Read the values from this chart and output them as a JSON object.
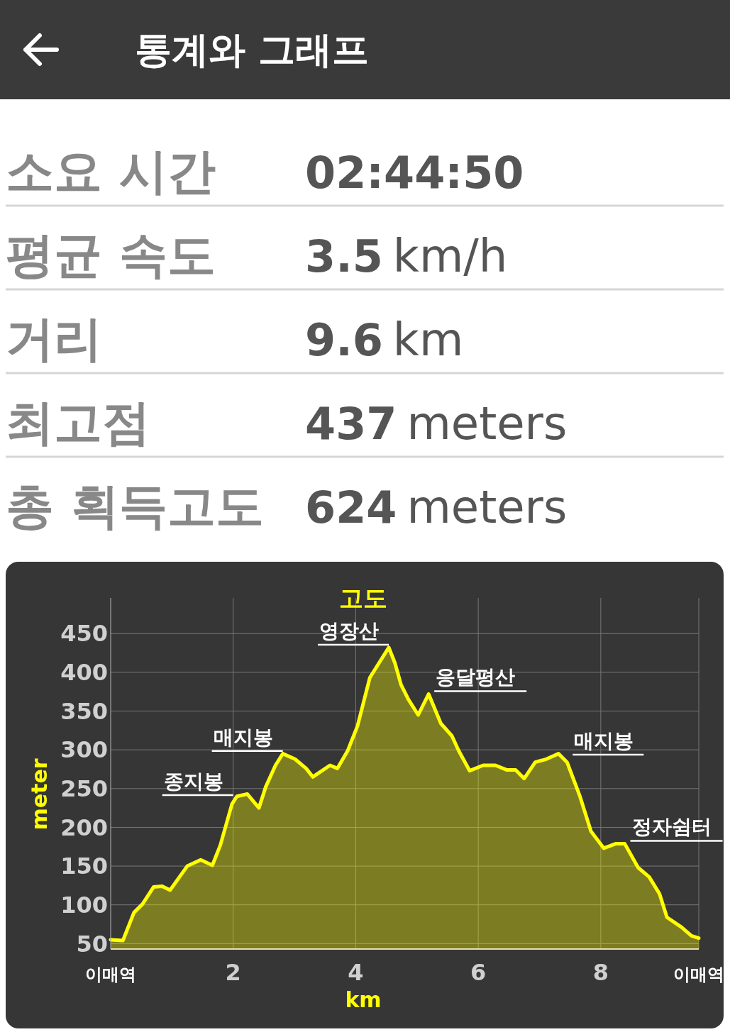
{
  "chart_data": [
    {
      "type": "other",
      "title": "통계와 그래프",
      "categories": [
        "소요 시간",
        "평균 속도",
        "거리",
        "최고점",
        "총 획득고도"
      ],
      "value_labels": [
        "02:44:50",
        "3.5 km/h",
        "9.6 km",
        "437 meters",
        "624 meters"
      ]
    },
    {
      "type": "area",
      "title": "고도",
      "xlabel": "km",
      "ylabel": "meter",
      "x": [
        0,
        0.2,
        0.38,
        0.52,
        0.7,
        0.84,
        0.97,
        1.25,
        1.47,
        1.66,
        1.79,
        1.98,
        2.06,
        2.23,
        2.42,
        2.53,
        2.69,
        2.81,
        3.01,
        3.19,
        3.3,
        3.58,
        3.7,
        3.87,
        4.03,
        4.23,
        4.38,
        4.54,
        4.64,
        4.74,
        4.86,
        5.02,
        5.19,
        5.39,
        5.57,
        5.68,
        5.86,
        6.08,
        6.28,
        6.47,
        6.61,
        6.75,
        6.93,
        7.11,
        7.31,
        7.45,
        7.66,
        7.84,
        8.05,
        8.25,
        8.39,
        8.61,
        8.79,
        8.96,
        9.08,
        9.32,
        9.48,
        9.6
      ],
      "series": [
        {
          "color": "#ffff00",
          "values": [
            55,
            54,
            90,
            101,
            123,
            124,
            119,
            150,
            158,
            151,
            177,
            230,
            240,
            243,
            225,
            252,
            280,
            295,
            288,
            276,
            265,
            280,
            276,
            299,
            331,
            393,
            412,
            432,
            412,
            384,
            365,
            345,
            372,
            334,
            318,
            299,
            273,
            280,
            280,
            274,
            274,
            263,
            284,
            288,
            295,
            284,
            240,
            195,
            173,
            179,
            179,
            148,
            136,
            114,
            84,
            71,
            60,
            57
          ]
        }
      ],
      "xlim": [
        0,
        9.6
      ],
      "ylim": [
        43,
        496
      ],
      "xticks": [
        {
          "value": 0,
          "label": "이매역"
        },
        2,
        4,
        6,
        8,
        {
          "value": 9.6,
          "label": "이매역"
        }
      ],
      "yticks": [
        50,
        100,
        150,
        200,
        250,
        300,
        350,
        400,
        450
      ],
      "grid": true,
      "annotations": [
        {
          "text": "종지봉",
          "x": 2.0,
          "y": 238
        },
        {
          "text": "매지봉",
          "x": 2.81,
          "y": 295
        },
        {
          "text": "영장산",
          "x": 4.54,
          "y": 432
        },
        {
          "text": "응달평산",
          "x": 5.19,
          "y": 372
        },
        {
          "text": "매지봉",
          "x": 7.45,
          "y": 290
        },
        {
          "text": "정자쉼터",
          "x": 8.39,
          "y": 179
        }
      ]
    }
  ]
}
